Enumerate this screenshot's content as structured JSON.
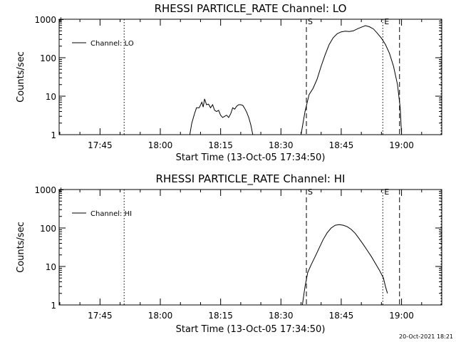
{
  "footer_timestamp": "20-Oct-2021 18:21",
  "chart_data": [
    {
      "type": "line",
      "title": "RHESSI PARTICLE_RATE Channel: LO",
      "xlabel": "Start Time (13-Oct-05 17:34:50)",
      "ylabel": "Counts/sec",
      "yscale": "log",
      "ylim": [
        1,
        1000
      ],
      "xlim": [
        "17:34:50",
        "19:10:00"
      ],
      "xtick_labels": [
        "17:45",
        "18:00",
        "18:15",
        "18:30",
        "18:45",
        "19:00"
      ],
      "ytick_labels": [
        "1",
        "10",
        "100",
        "1000"
      ],
      "legend": "top-left",
      "vlines": [
        {
          "x": "17:51:00",
          "style": "dotted"
        },
        {
          "x": "18:36:20",
          "style": "dashed",
          "label": "S"
        },
        {
          "x": "18:55:20",
          "style": "dotted",
          "label": "E"
        },
        {
          "x": "18:59:30",
          "style": "dashed"
        },
        {
          "x": "19:09:50",
          "style": "dotted"
        }
      ],
      "series": [
        {
          "name": "Channel: LO",
          "segments": [
            [
              [
                "18:07:20",
                1.0
              ],
              [
                "18:07:50",
                2.0
              ],
              [
                "18:08:30",
                3.5
              ],
              [
                "18:09:00",
                5.0
              ],
              [
                "18:09:40",
                5.0
              ],
              [
                "18:10:20",
                7.0
              ],
              [
                "18:10:40",
                5.2
              ],
              [
                "18:11:00",
                8.5
              ],
              [
                "18:11:30",
                6.0
              ],
              [
                "18:12:00",
                6.2
              ],
              [
                "18:12:30",
                5.0
              ],
              [
                "18:13:00",
                6.0
              ],
              [
                "18:13:30",
                4.3
              ],
              [
                "18:14:00",
                4.0
              ],
              [
                "18:14:30",
                4.3
              ],
              [
                "18:15:00",
                3.2
              ],
              [
                "18:15:30",
                2.8
              ],
              [
                "18:16:00",
                3.0
              ],
              [
                "18:16:30",
                3.2
              ],
              [
                "18:17:00",
                2.8
              ],
              [
                "18:17:30",
                3.5
              ],
              [
                "18:18:00",
                5.0
              ],
              [
                "18:18:30",
                4.6
              ],
              [
                "18:19:00",
                5.5
              ],
              [
                "18:19:30",
                6.0
              ],
              [
                "18:20:00",
                6.0
              ],
              [
                "18:20:30",
                5.8
              ],
              [
                "18:21:00",
                4.8
              ],
              [
                "18:21:30",
                3.8
              ],
              [
                "18:22:00",
                2.8
              ],
              [
                "18:22:30",
                1.8
              ],
              [
                "18:23:00",
                1.0
              ]
            ],
            [
              [
                "18:35:00",
                1.0
              ],
              [
                "18:36:00",
                4.0
              ],
              [
                "18:37:00",
                11
              ],
              [
                "18:38:00",
                16
              ],
              [
                "18:39:00",
                28
              ],
              [
                "18:40:00",
                60
              ],
              [
                "18:41:00",
                120
              ],
              [
                "18:42:00",
                220
              ],
              [
                "18:43:00",
                330
              ],
              [
                "18:44:00",
                420
              ],
              [
                "18:45:00",
                470
              ],
              [
                "18:46:00",
                490
              ],
              [
                "18:47:00",
                480
              ],
              [
                "18:48:00",
                500
              ],
              [
                "18:49:00",
                560
              ],
              [
                "18:50:00",
                620
              ],
              [
                "18:51:00",
                680
              ],
              [
                "18:52:00",
                640
              ],
              [
                "18:53:00",
                560
              ],
              [
                "18:54:00",
                430
              ],
              [
                "18:55:00",
                320
              ],
              [
                "18:56:00",
                220
              ],
              [
                "18:57:00",
                130
              ],
              [
                "18:58:00",
                60
              ],
              [
                "18:59:00",
                20
              ],
              [
                "18:59:40",
                5.0
              ],
              [
                "19:00:00",
                1.0
              ]
            ]
          ]
        }
      ]
    },
    {
      "type": "line",
      "title": "RHESSI PARTICLE_RATE Channel: HI",
      "xlabel": "Start Time (13-Oct-05 17:34:50)",
      "ylabel": "Counts/sec",
      "yscale": "log",
      "ylim": [
        1,
        1000
      ],
      "xlim": [
        "17:34:50",
        "19:10:00"
      ],
      "xtick_labels": [
        "17:45",
        "18:00",
        "18:15",
        "18:30",
        "18:45",
        "19:00"
      ],
      "ytick_labels": [
        "1",
        "10",
        "100",
        "1000"
      ],
      "legend": "top-left",
      "vlines": [
        {
          "x": "17:51:00",
          "style": "dotted"
        },
        {
          "x": "18:36:20",
          "style": "dashed",
          "label": "S"
        },
        {
          "x": "18:55:20",
          "style": "dotted",
          "label": "E"
        },
        {
          "x": "18:59:30",
          "style": "dashed"
        },
        {
          "x": "19:09:50",
          "style": "dotted"
        }
      ],
      "series": [
        {
          "name": "Channel: HI",
          "segments": [
            [
              [
                "18:35:20",
                1.0
              ],
              [
                "18:36:00",
                3.0
              ],
              [
                "18:36:40",
                7.0
              ],
              [
                "18:37:30",
                11
              ],
              [
                "18:38:30",
                18
              ],
              [
                "18:39:30",
                30
              ],
              [
                "18:40:30",
                50
              ],
              [
                "18:41:30",
                75
              ],
              [
                "18:42:30",
                100
              ],
              [
                "18:43:30",
                118
              ],
              [
                "18:44:30",
                122
              ],
              [
                "18:45:30",
                118
              ],
              [
                "18:46:30",
                108
              ],
              [
                "18:47:30",
                92
              ],
              [
                "18:48:30",
                72
              ],
              [
                "18:49:30",
                52
              ],
              [
                "18:50:30",
                37
              ],
              [
                "18:51:30",
                26
              ],
              [
                "18:52:30",
                18
              ],
              [
                "18:53:30",
                12
              ],
              [
                "18:54:30",
                8.0
              ],
              [
                "18:55:30",
                5.0
              ],
              [
                "18:56:00",
                3.0
              ],
              [
                "18:56:30",
                2.0
              ]
            ]
          ]
        }
      ]
    }
  ]
}
